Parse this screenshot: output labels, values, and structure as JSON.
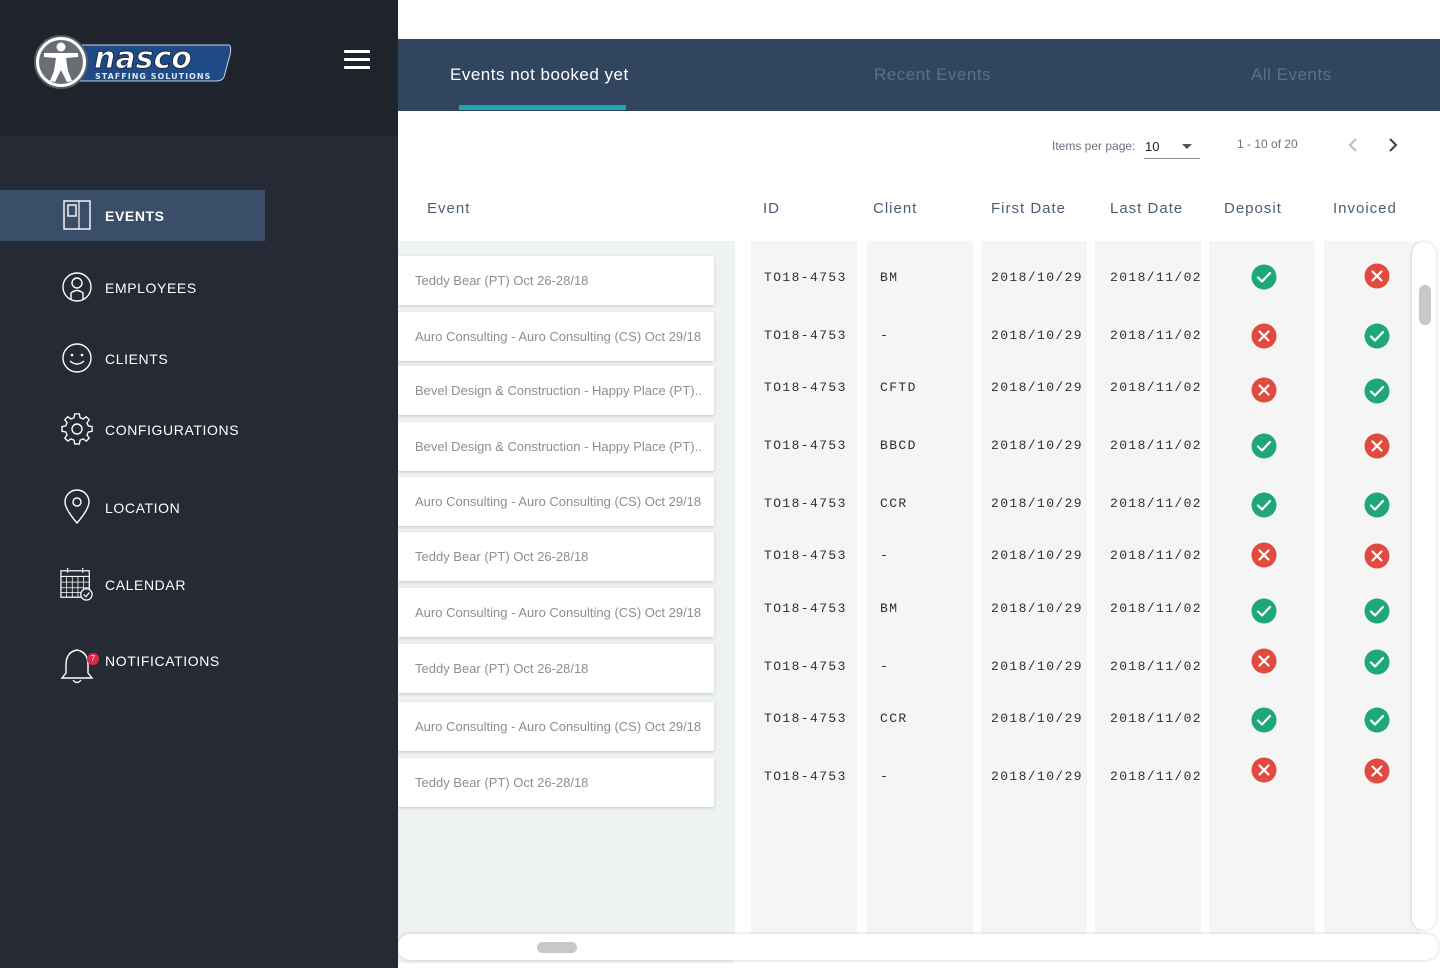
{
  "app": {
    "brand_name": "nasco",
    "brand_tagline": "STAFFING SOLUTIONS"
  },
  "sidebar": {
    "items": [
      {
        "label": "EVENTS",
        "icon": "events-icon",
        "active": true
      },
      {
        "label": "EMPLOYEES",
        "icon": "employees-icon",
        "active": false
      },
      {
        "label": "CLIENTS",
        "icon": "clients-icon",
        "active": false
      },
      {
        "label": "CONFIGURATIONS",
        "icon": "gear-icon",
        "active": false
      },
      {
        "label": "LOCATION",
        "icon": "location-pin-icon",
        "active": false
      },
      {
        "label": "CALENDAR",
        "icon": "calendar-icon",
        "active": false
      },
      {
        "label": "NOTIFICATIONS",
        "icon": "bell-icon",
        "active": false,
        "badge": "7"
      }
    ]
  },
  "tabs": [
    {
      "label": "Events not booked yet",
      "active": true
    },
    {
      "label": "Recent Events",
      "active": false
    },
    {
      "label": "All Events",
      "active": false
    }
  ],
  "paginator": {
    "items_per_page_label": "Items per page:",
    "items_per_page": "10",
    "range": "1 - 10 of 20"
  },
  "table": {
    "headers": {
      "event": "Event",
      "id": "ID",
      "client": "Client",
      "first_date": "First Date",
      "last_date": "Last Date",
      "deposit": "Deposit",
      "invoiced": "Invoiced"
    },
    "rows": [
      {
        "event": "Teddy Bear (PT) Oct 26-28/18",
        "id": "TO18-4753",
        "client": "BM",
        "first_date": "2018/10/29",
        "last_date": "2018/11/02",
        "deposit": true,
        "invoiced": false
      },
      {
        "event": "Auro Consulting - Auro Consulting (CS) Oct 29/18",
        "id": "TO18-4753",
        "client": "-",
        "first_date": "2018/10/29",
        "last_date": "2018/11/02",
        "deposit": false,
        "invoiced": true
      },
      {
        "event": "Bevel Design & Construction - Happy Place (PT)..",
        "id": "TO18-4753",
        "client": "CFTD",
        "first_date": "2018/10/29",
        "last_date": "2018/11/02",
        "deposit": false,
        "invoiced": true
      },
      {
        "event": "Bevel Design & Construction - Happy Place (PT)..",
        "id": "TO18-4753",
        "client": "BBCD",
        "first_date": "2018/10/29",
        "last_date": "2018/11/02",
        "deposit": true,
        "invoiced": false
      },
      {
        "event": "Auro Consulting - Auro Consulting (CS) Oct 29/18",
        "id": "TO18-4753",
        "client": "CCR",
        "first_date": "2018/10/29",
        "last_date": "2018/11/02",
        "deposit": true,
        "invoiced": true
      },
      {
        "event": "Teddy Bear (PT) Oct 26-28/18",
        "id": "TO18-4753",
        "client": "-",
        "first_date": "2018/10/29",
        "last_date": "2018/11/02",
        "deposit": false,
        "invoiced": false
      },
      {
        "event": "Auro Consulting - Auro Consulting (CS) Oct 29/18",
        "id": "TO18-4753",
        "client": "BM",
        "first_date": "2018/10/29",
        "last_date": "2018/11/02",
        "deposit": true,
        "invoiced": true
      },
      {
        "event": "Teddy Bear (PT) Oct 26-28/18",
        "id": "TO18-4753",
        "client": "-",
        "first_date": "2018/10/29",
        "last_date": "2018/11/02",
        "deposit": false,
        "invoiced": true
      },
      {
        "event": "Auro Consulting - Auro Consulting (CS) Oct 29/18",
        "id": "TO18-4753",
        "client": "CCR",
        "first_date": "2018/10/29",
        "last_date": "2018/11/02",
        "deposit": true,
        "invoiced": true
      },
      {
        "event": "Teddy Bear (PT) Oct 26-28/18",
        "id": "TO18-4753",
        "client": "-",
        "first_date": "2018/10/29",
        "last_date": "2018/11/02",
        "deposit": false,
        "invoiced": false
      }
    ]
  },
  "colors": {
    "sidebar_bg": "#262a35",
    "active_nav": "#3a4e69",
    "tab_bar": "#31455f",
    "tab_ink": "#20a3b5",
    "check_green": "#1fa67a",
    "cross_red": "#e04a3f"
  }
}
